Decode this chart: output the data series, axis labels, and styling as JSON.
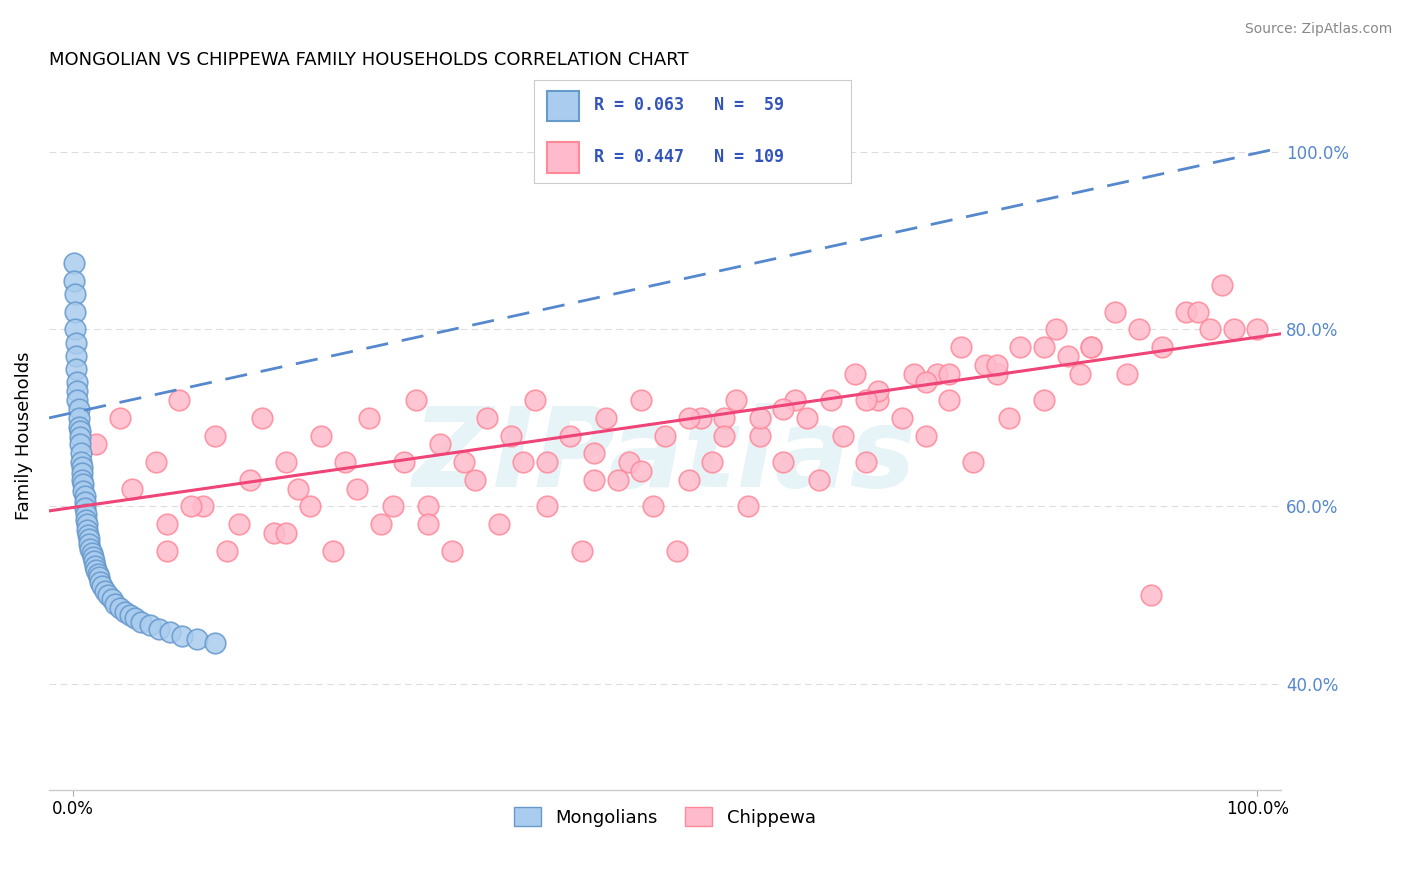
{
  "title": "MONGOLIAN VS CHIPPEWA FAMILY HOUSEHOLDS CORRELATION CHART",
  "source": "Source: ZipAtlas.com",
  "ylabel": "Family Households",
  "watermark": "ZIPatlas",
  "legend_mongolian": "Mongolians",
  "legend_chippewa": "Chippewa",
  "mongolian_R": 0.063,
  "mongolian_N": 59,
  "chippewa_R": 0.447,
  "chippewa_N": 109,
  "mongolian_color_edge": "#6699CC",
  "mongolian_color_face": "#aaccee",
  "chippewa_color_edge": "#FF8899",
  "chippewa_color_face": "#ffbbcc",
  "trend_blue": "#5588cc",
  "trend_pink": "#ee4477",
  "ytick_labels": [
    "40.0%",
    "60.0%",
    "80.0%",
    "100.0%"
  ],
  "ytick_values": [
    0.4,
    0.6,
    0.8,
    1.0
  ],
  "xlim": [
    -0.02,
    1.02
  ],
  "ylim": [
    0.28,
    1.08
  ],
  "background_color": "#ffffff",
  "grid_color": "#dddddd",
  "mongolian_x": [
    0.001,
    0.001,
    0.002,
    0.002,
    0.002,
    0.003,
    0.003,
    0.003,
    0.004,
    0.004,
    0.004,
    0.005,
    0.005,
    0.005,
    0.006,
    0.006,
    0.006,
    0.007,
    0.007,
    0.008,
    0.008,
    0.008,
    0.009,
    0.009,
    0.01,
    0.01,
    0.01,
    0.011,
    0.011,
    0.012,
    0.012,
    0.013,
    0.014,
    0.014,
    0.015,
    0.016,
    0.017,
    0.018,
    0.019,
    0.02,
    0.021,
    0.022,
    0.023,
    0.025,
    0.027,
    0.03,
    0.033,
    0.036,
    0.04,
    0.044,
    0.048,
    0.053,
    0.058,
    0.065,
    0.073,
    0.082,
    0.092,
    0.105,
    0.12
  ],
  "mongolian_y": [
    0.875,
    0.855,
    0.84,
    0.82,
    0.8,
    0.785,
    0.77,
    0.755,
    0.74,
    0.73,
    0.72,
    0.71,
    0.7,
    0.69,
    0.685,
    0.678,
    0.67,
    0.66,
    0.65,
    0.645,
    0.638,
    0.63,
    0.625,
    0.618,
    0.612,
    0.605,
    0.598,
    0.592,
    0.585,
    0.58,
    0.574,
    0.568,
    0.563,
    0.558,
    0.552,
    0.548,
    0.543,
    0.538,
    0.533,
    0.528,
    0.524,
    0.52,
    0.515,
    0.51,
    0.505,
    0.5,
    0.495,
    0.49,
    0.485,
    0.481,
    0.478,
    0.474,
    0.47,
    0.466,
    0.462,
    0.458,
    0.454,
    0.45,
    0.446
  ],
  "chippewa_x": [
    0.02,
    0.04,
    0.05,
    0.07,
    0.08,
    0.09,
    0.11,
    0.12,
    0.13,
    0.15,
    0.16,
    0.17,
    0.18,
    0.2,
    0.21,
    0.22,
    0.24,
    0.25,
    0.26,
    0.28,
    0.29,
    0.3,
    0.31,
    0.32,
    0.34,
    0.35,
    0.36,
    0.38,
    0.39,
    0.4,
    0.42,
    0.43,
    0.44,
    0.45,
    0.47,
    0.48,
    0.49,
    0.5,
    0.51,
    0.52,
    0.53,
    0.54,
    0.56,
    0.57,
    0.58,
    0.6,
    0.61,
    0.62,
    0.63,
    0.65,
    0.66,
    0.67,
    0.68,
    0.7,
    0.71,
    0.72,
    0.74,
    0.75,
    0.76,
    0.78,
    0.79,
    0.8,
    0.82,
    0.83,
    0.85,
    0.86,
    0.88,
    0.89,
    0.9,
    0.92,
    0.94,
    0.96,
    0.97,
    0.98,
    1.0,
    0.1,
    0.23,
    0.37,
    0.46,
    0.55,
    0.64,
    0.73,
    0.82,
    0.08,
    0.19,
    0.33,
    0.52,
    0.68,
    0.77,
    0.14,
    0.4,
    0.58,
    0.72,
    0.86,
    0.27,
    0.44,
    0.6,
    0.78,
    0.95,
    0.3,
    0.48,
    0.67,
    0.84,
    0.18,
    0.55,
    0.74,
    0.91
  ],
  "chippewa_y": [
    0.67,
    0.7,
    0.62,
    0.65,
    0.58,
    0.72,
    0.6,
    0.68,
    0.55,
    0.63,
    0.7,
    0.57,
    0.65,
    0.6,
    0.68,
    0.55,
    0.62,
    0.7,
    0.58,
    0.65,
    0.72,
    0.6,
    0.67,
    0.55,
    0.63,
    0.7,
    0.58,
    0.65,
    0.72,
    0.6,
    0.68,
    0.55,
    0.63,
    0.7,
    0.65,
    0.72,
    0.6,
    0.68,
    0.55,
    0.63,
    0.7,
    0.65,
    0.72,
    0.6,
    0.68,
    0.65,
    0.72,
    0.7,
    0.63,
    0.68,
    0.75,
    0.65,
    0.72,
    0.7,
    0.75,
    0.68,
    0.72,
    0.78,
    0.65,
    0.75,
    0.7,
    0.78,
    0.72,
    0.8,
    0.75,
    0.78,
    0.82,
    0.75,
    0.8,
    0.78,
    0.82,
    0.8,
    0.85,
    0.8,
    0.8,
    0.6,
    0.65,
    0.68,
    0.63,
    0.7,
    0.72,
    0.75,
    0.78,
    0.55,
    0.62,
    0.65,
    0.7,
    0.73,
    0.76,
    0.58,
    0.65,
    0.7,
    0.74,
    0.78,
    0.6,
    0.66,
    0.71,
    0.76,
    0.82,
    0.58,
    0.64,
    0.72,
    0.77,
    0.57,
    0.68,
    0.75,
    0.5
  ]
}
